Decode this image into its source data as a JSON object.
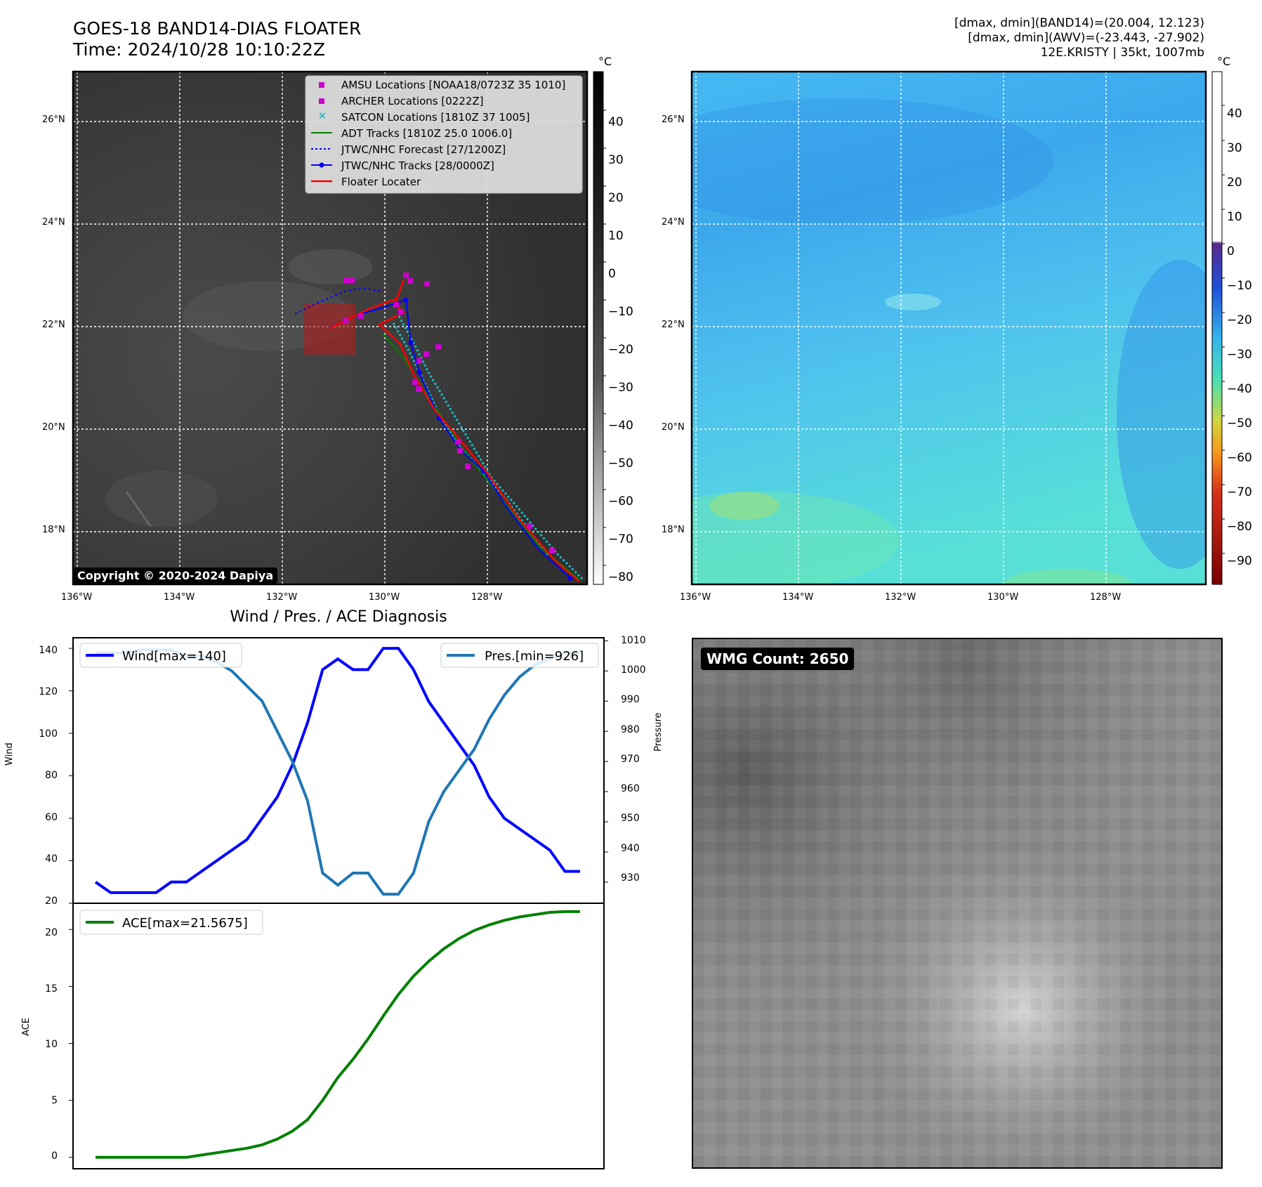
{
  "header": {
    "title_line1": "GOES-18 BAND14-DIAS FLOATER",
    "title_line2": "Time: 2024/10/28 10:10:22Z",
    "info_line1": "[dmax, dmin](BAND14)=(20.004, 12.123)",
    "info_line2": "[dmax, dmin](AWV)=(-23.443, -27.902)",
    "info_line3": "12E.KRISTY | 35kt, 1007mb"
  },
  "ir_map": {
    "lat_labels": [
      "26°N",
      "24°N",
      "22°N",
      "20°N",
      "18°N"
    ],
    "lon_labels": [
      "136°W",
      "134°W",
      "132°W",
      "130°W",
      "128°W"
    ],
    "legend": [
      {
        "label": "AMSU Locations [NOAA18/0723Z 35 1010]",
        "marker": "square",
        "color": "#cc00cc"
      },
      {
        "label": "ARCHER Locations [0222Z]",
        "marker": "square",
        "color": "#cc00cc"
      },
      {
        "label": "SATCON Locations [1810Z 37 1005]",
        "marker": "x",
        "color": "#17bcc4"
      },
      {
        "label": "ADT Tracks [1810Z 25.0 1006.0]",
        "marker": "line",
        "color": "#008000"
      },
      {
        "label": "JTWC/NHC Forecast [27/1200Z]",
        "marker": "dotted",
        "color": "#0000ff"
      },
      {
        "label": "JTWC/NHC Tracks [28/0000Z]",
        "marker": "line-dot",
        "color": "#0000ff"
      },
      {
        "label": "Floater Locater",
        "marker": "line",
        "color": "#ff0000"
      }
    ],
    "copyright": "Copyright © 2020-2024 Dapiya",
    "colorbar_unit": "°C",
    "colorbar_ticks": [
      "40",
      "30",
      "20",
      "10",
      "0",
      "−10",
      "−20",
      "−30",
      "−40",
      "−50",
      "−60",
      "−70",
      "−80"
    ]
  },
  "wv_map": {
    "lat_labels": [
      "26°N",
      "24°N",
      "22°N",
      "20°N",
      "18°N"
    ],
    "lon_labels": [
      "136°W",
      "134°W",
      "132°W",
      "130°W",
      "128°W"
    ],
    "colorbar_unit": "°C",
    "colorbar_ticks": [
      "40",
      "30",
      "20",
      "10",
      "0",
      "−10",
      "−20",
      "−30",
      "−40",
      "−50",
      "−60",
      "−70",
      "−80",
      "−90"
    ]
  },
  "diagnosis": {
    "title": "Wind / Pres. / ACE Diagnosis",
    "wind_legend": "Wind[max=140]",
    "pres_legend": "Pres.[min=926]",
    "ace_legend": "ACE[max=21.5675]",
    "wind_axis_label": "Wind",
    "pres_axis_label": "Pressure",
    "ace_axis_label": "ACE",
    "wind_ticks": [
      "140",
      "120",
      "100",
      "80",
      "60",
      "40",
      "20"
    ],
    "pres_ticks": [
      "1010",
      "1000",
      "990",
      "980",
      "970",
      "960",
      "950",
      "940",
      "930"
    ],
    "ace_ticks": [
      "20",
      "15",
      "10",
      "5",
      "0"
    ]
  },
  "wmg": {
    "count_label": "WMG Count: 2650"
  },
  "chart_data": [
    {
      "type": "line",
      "title": "Wind / Pres. / ACE Diagnosis",
      "x": [
        0,
        1,
        2,
        3,
        4,
        5,
        6,
        7,
        8,
        9,
        10,
        11,
        12,
        13,
        14,
        15,
        16,
        17,
        18,
        19,
        20,
        21,
        22,
        23,
        24,
        25,
        26,
        27,
        28,
        29,
        30,
        31,
        32
      ],
      "series": [
        {
          "name": "Wind[max=140]",
          "axis": "left",
          "color": "#0000ff",
          "values": [
            30,
            25,
            25,
            25,
            25,
            30,
            30,
            35,
            40,
            45,
            50,
            60,
            70,
            85,
            105,
            130,
            135,
            130,
            130,
            140,
            140,
            130,
            115,
            105,
            95,
            85,
            70,
            60,
            55,
            50,
            45,
            35,
            35
          ]
        },
        {
          "name": "Pres.[min=926]",
          "axis": "right",
          "color": "#1f77b4",
          "values": [
            1006,
            1006,
            1006,
            1007,
            1007,
            1007,
            1005,
            1005,
            1003,
            1000,
            995,
            990,
            980,
            970,
            957,
            933,
            929,
            933,
            933,
            926,
            926,
            933,
            950,
            960,
            967,
            974,
            984,
            992,
            998,
            1002,
            1004,
            1006,
            1006
          ]
        }
      ],
      "ylabel": "Wind",
      "ylim": [
        20,
        145
      ],
      "y2label": "Pressure",
      "y2lim": [
        923,
        1011
      ],
      "grid": false,
      "legend": "top-left and top-right"
    },
    {
      "type": "line",
      "x": [
        0,
        1,
        2,
        3,
        4,
        5,
        6,
        7,
        8,
        9,
        10,
        11,
        12,
        13,
        14,
        15,
        16,
        17,
        18,
        19,
        20,
        21,
        22,
        23,
        24,
        25,
        26,
        27,
        28,
        29,
        30,
        31,
        32
      ],
      "series": [
        {
          "name": "ACE[max=21.5675]",
          "color": "#008000",
          "values": [
            0,
            0,
            0,
            0,
            0,
            0,
            0,
            0.2,
            0.4,
            0.6,
            0.8,
            1.1,
            1.6,
            2.3,
            3.3,
            5.0,
            7.0,
            8.6,
            10.4,
            12.4,
            14.3,
            15.9,
            17.2,
            18.3,
            19.2,
            19.9,
            20.4,
            20.8,
            21.1,
            21.3,
            21.5,
            21.5675,
            21.5675
          ]
        }
      ],
      "ylabel": "ACE",
      "ylim": [
        -1,
        22.3
      ],
      "grid": false,
      "legend": "top-left"
    }
  ]
}
